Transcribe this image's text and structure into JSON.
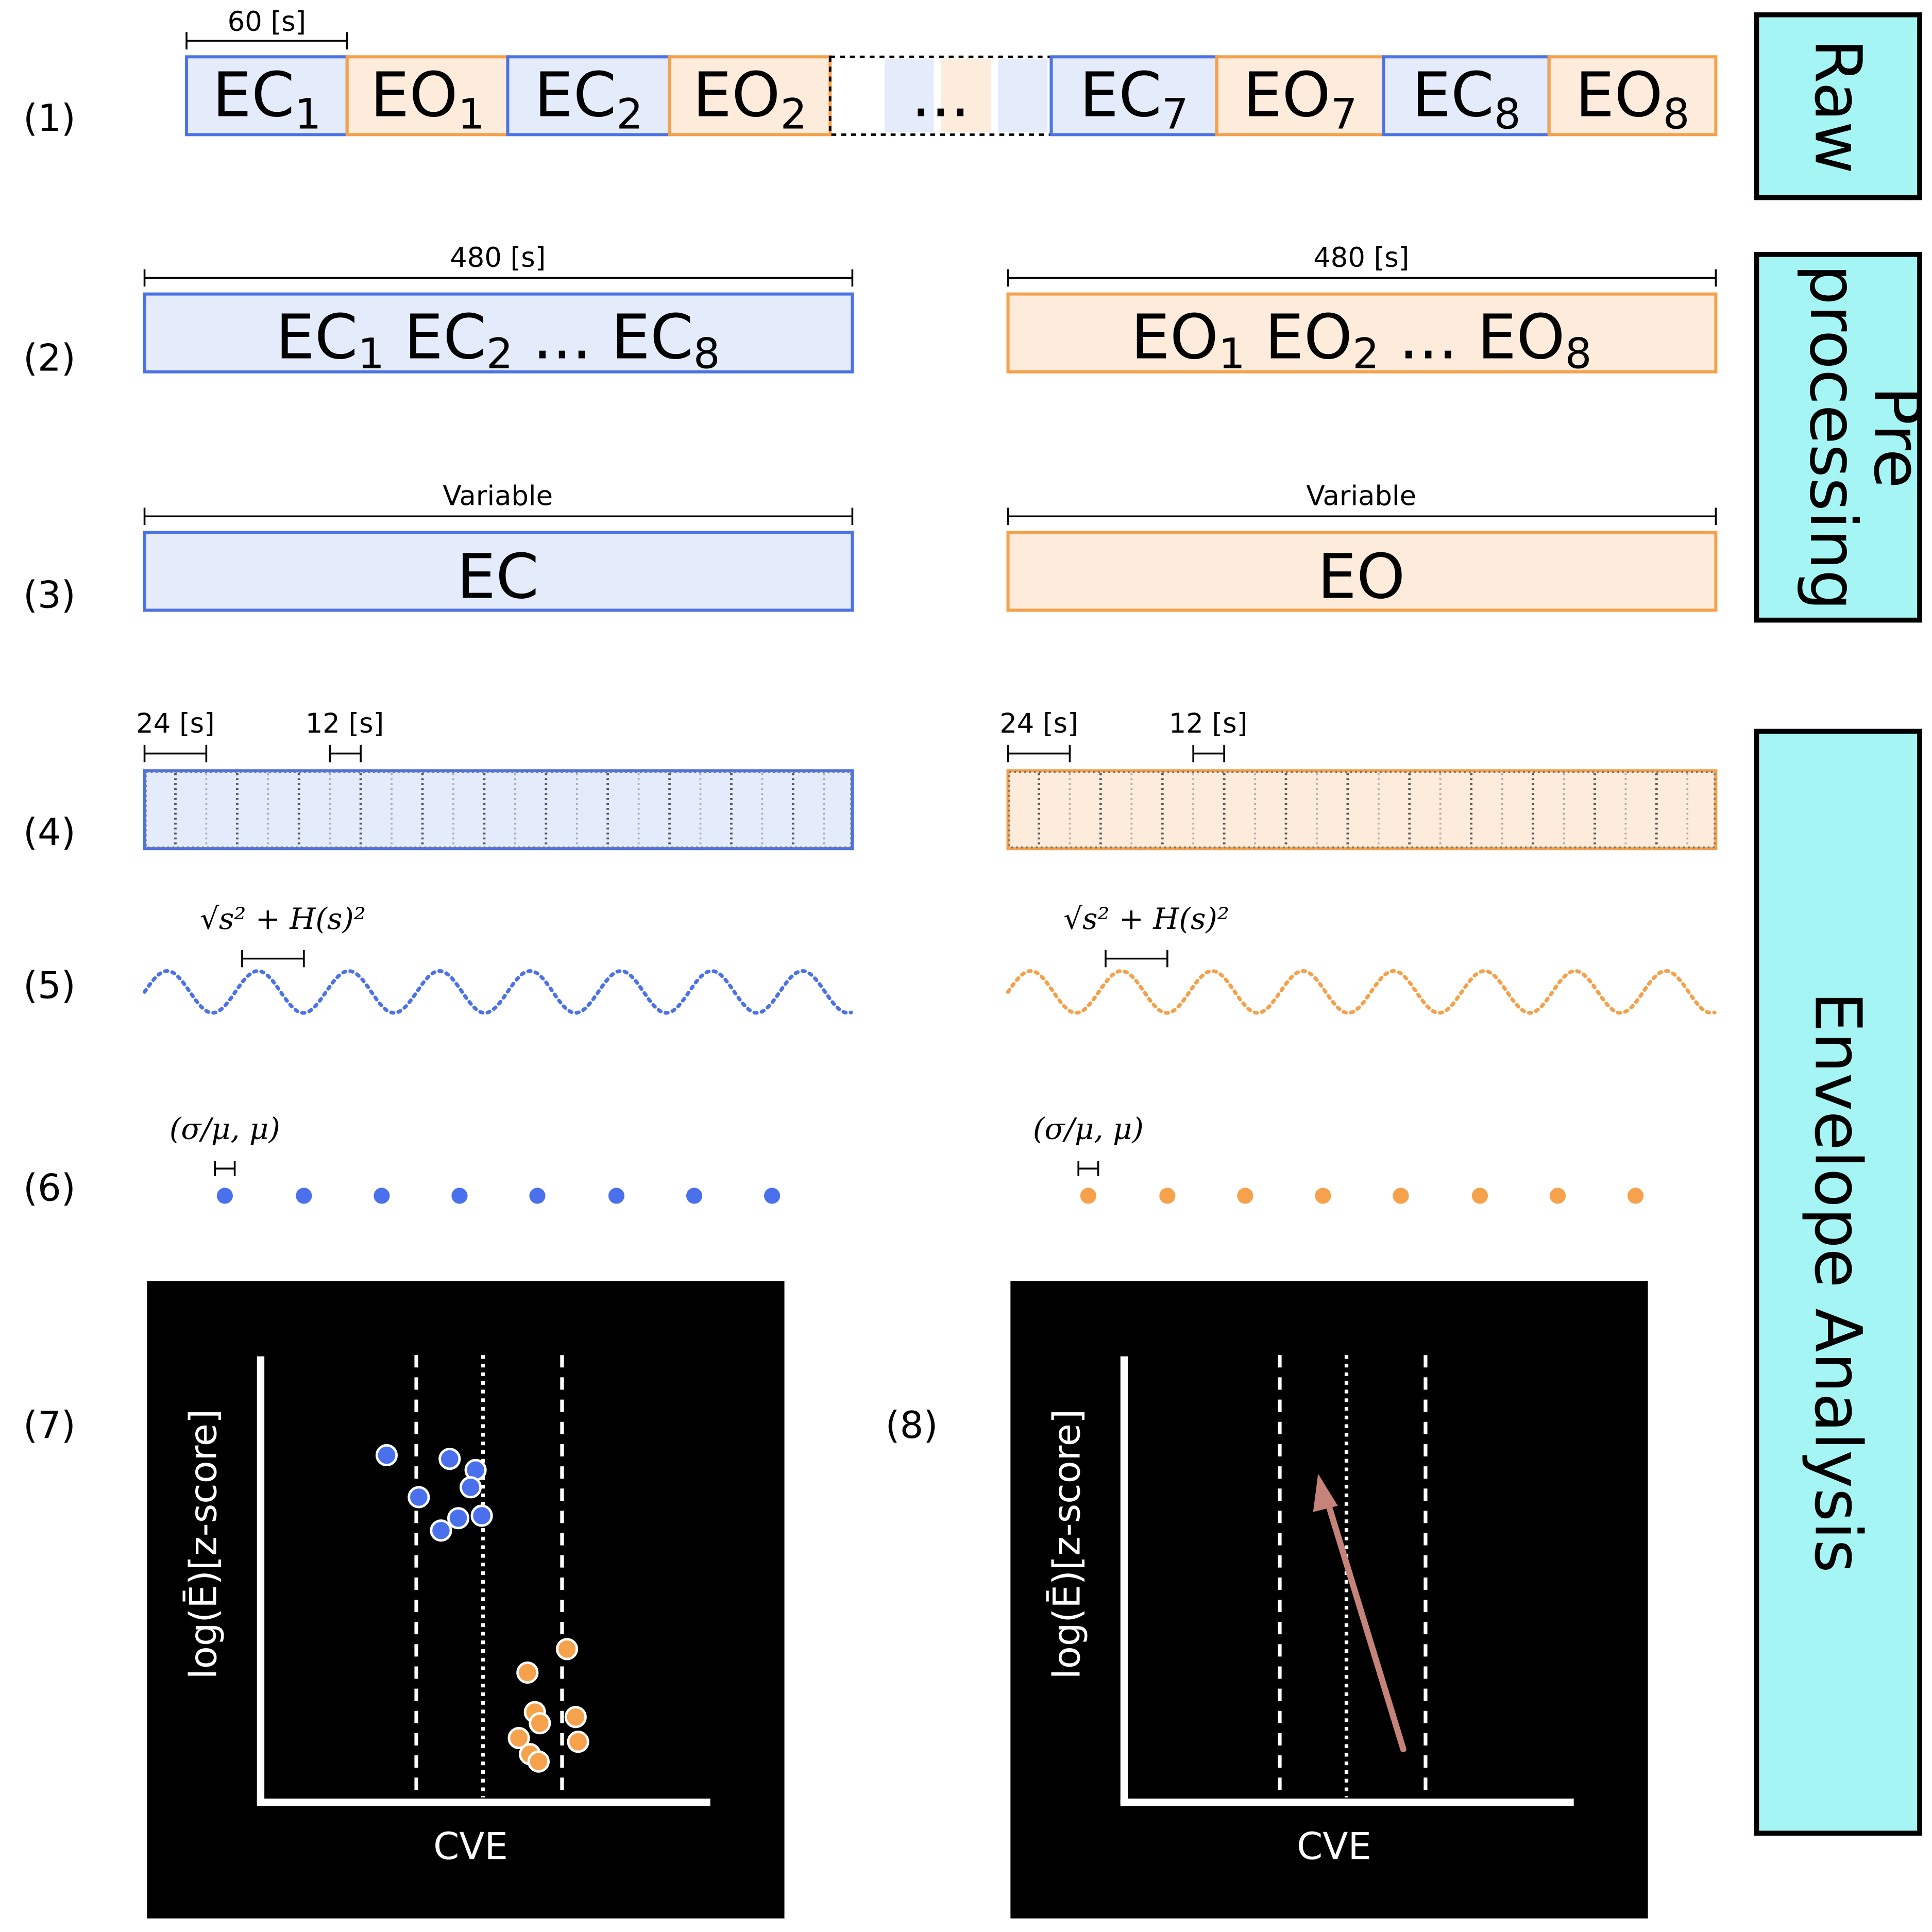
{
  "colors": {
    "ec_stroke": "#4c72e6",
    "ec_fill": "#e4ebfb",
    "eo_stroke": "#f5a04a",
    "eo_fill": "#fdebdb",
    "ec_dot": "#4a70ec",
    "eo_dot": "#f6a14b",
    "panel": "#000000",
    "stage": "#a6f5f5",
    "arrow": "#c6837a"
  },
  "rows": [
    "(1)",
    "(2)",
    "(3)",
    "(4)",
    "(5)",
    "(6)",
    "(7)",
    "(8)"
  ],
  "stages": {
    "raw": "Raw",
    "pre_line1": "Pre",
    "pre_line2": "processing",
    "env": "Envelope Analysis"
  },
  "row1": {
    "dur": "60 [s]",
    "blocks": [
      {
        "main": "EC",
        "sub": "1",
        "kind": "ec"
      },
      {
        "main": "EO",
        "sub": "1",
        "kind": "eo"
      },
      {
        "main": "EC",
        "sub": "2",
        "kind": "ec"
      },
      {
        "main": "EO",
        "sub": "2",
        "kind": "eo"
      },
      {
        "main": "...",
        "sub": "",
        "kind": "gap"
      },
      {
        "main": "EC",
        "sub": "7",
        "kind": "ec"
      },
      {
        "main": "EO",
        "sub": "7",
        "kind": "eo"
      },
      {
        "main": "EC",
        "sub": "8",
        "kind": "ec"
      },
      {
        "main": "EO",
        "sub": "8",
        "kind": "eo"
      }
    ]
  },
  "row2": {
    "dur": "480 [s]",
    "ec": {
      "p1": "EC",
      "s1": "1",
      "p2": " EC",
      "s2": "2",
      "p3": " ... EC",
      "s3": "8"
    },
    "eo": {
      "p1": "EO",
      "s1": "1",
      "p2": " EO",
      "s2": "2",
      "p3": " ... EO",
      "s3": "8"
    }
  },
  "row3": {
    "dur": "Variable",
    "ec": "EC",
    "eo": "EO"
  },
  "row4": {
    "win": "24 [s]",
    "step": "12 [s]"
  },
  "row5": {
    "formula": "√s² + H(s)²"
  },
  "row6": {
    "stat": "(σ/μ, μ)"
  },
  "scatter": {
    "xlabel": "CVE",
    "ylabel": "log(Ē)[z-score]",
    "ec_points": [
      [
        313,
        1178
      ],
      [
        364,
        1181
      ],
      [
        385,
        1190
      ],
      [
        381,
        1204
      ],
      [
        339,
        1212
      ],
      [
        371,
        1229
      ],
      [
        390,
        1227
      ],
      [
        357,
        1239
      ]
    ],
    "eo_points": [
      [
        459,
        1335
      ],
      [
        427,
        1354
      ],
      [
        433,
        1386
      ],
      [
        466,
        1390
      ],
      [
        420,
        1407
      ],
      [
        437,
        1395
      ],
      [
        468,
        1410
      ],
      [
        429,
        1420
      ],
      [
        436,
        1426
      ]
    ]
  },
  "panel8": {
    "xlabel": "CVE",
    "ylabel": "log(Ē)[z-score]"
  }
}
